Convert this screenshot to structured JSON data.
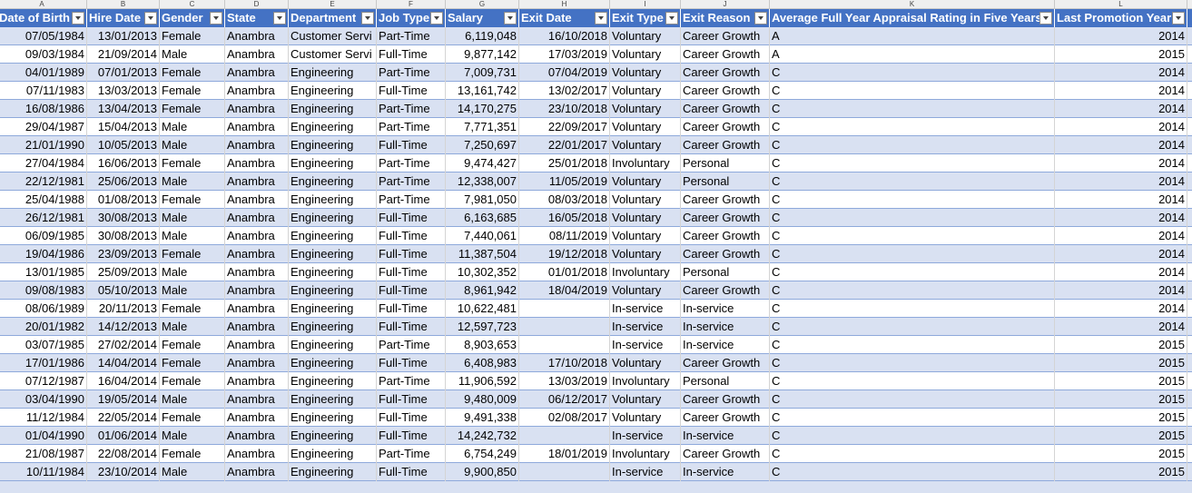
{
  "column_letters": [
    "A",
    "B",
    "C",
    "D",
    "E",
    "F",
    "G",
    "H",
    "I",
    "J",
    "K",
    "L"
  ],
  "headers": [
    "Date of Birth",
    "Hire Date",
    "Gender",
    "State",
    "Department",
    "Job Type",
    "Salary",
    "Exit Date",
    "Exit Type",
    "Exit Reason",
    "Average Full Year Appraisal Rating in Five Years",
    "Last Promotion Year"
  ],
  "rows": [
    [
      "07/05/1984",
      "13/01/2013",
      "Female",
      "Anambra",
      "Customer Servi",
      "Part-Time",
      "6,119,048",
      "16/10/2018",
      "Voluntary",
      "Career Growth",
      "A",
      "2014"
    ],
    [
      "09/03/1984",
      "21/09/2014",
      "Male",
      "Anambra",
      "Customer Servi",
      "Full-Time",
      "9,877,142",
      "17/03/2019",
      "Voluntary",
      "Career Growth",
      "A",
      "2015"
    ],
    [
      "04/01/1989",
      "07/01/2013",
      "Female",
      "Anambra",
      "Engineering",
      "Part-Time",
      "7,009,731",
      "07/04/2019",
      "Voluntary",
      "Career Growth",
      "C",
      "2014"
    ],
    [
      "07/11/1983",
      "13/03/2013",
      "Female",
      "Anambra",
      "Engineering",
      "Full-Time",
      "13,161,742",
      "13/02/2017",
      "Voluntary",
      "Career Growth",
      "C",
      "2014"
    ],
    [
      "16/08/1986",
      "13/04/2013",
      "Female",
      "Anambra",
      "Engineering",
      "Part-Time",
      "14,170,275",
      "23/10/2018",
      "Voluntary",
      "Career Growth",
      "C",
      "2014"
    ],
    [
      "29/04/1987",
      "15/04/2013",
      "Male",
      "Anambra",
      "Engineering",
      "Part-Time",
      "7,771,351",
      "22/09/2017",
      "Voluntary",
      "Career Growth",
      "C",
      "2014"
    ],
    [
      "21/01/1990",
      "10/05/2013",
      "Male",
      "Anambra",
      "Engineering",
      "Full-Time",
      "7,250,697",
      "22/01/2017",
      "Voluntary",
      "Career Growth",
      "C",
      "2014"
    ],
    [
      "27/04/1984",
      "16/06/2013",
      "Female",
      "Anambra",
      "Engineering",
      "Part-Time",
      "9,474,427",
      "25/01/2018",
      "Involuntary",
      "Personal",
      "C",
      "2014"
    ],
    [
      "22/12/1981",
      "25/06/2013",
      "Male",
      "Anambra",
      "Engineering",
      "Part-Time",
      "12,338,007",
      "11/05/2019",
      "Voluntary",
      "Personal",
      "C",
      "2014"
    ],
    [
      "25/04/1988",
      "01/08/2013",
      "Female",
      "Anambra",
      "Engineering",
      "Part-Time",
      "7,981,050",
      "08/03/2018",
      "Voluntary",
      "Career Growth",
      "C",
      "2014"
    ],
    [
      "26/12/1981",
      "30/08/2013",
      "Male",
      "Anambra",
      "Engineering",
      "Full-Time",
      "6,163,685",
      "16/05/2018",
      "Voluntary",
      "Career Growth",
      "C",
      "2014"
    ],
    [
      "06/09/1985",
      "30/08/2013",
      "Male",
      "Anambra",
      "Engineering",
      "Full-Time",
      "7,440,061",
      "08/11/2019",
      "Voluntary",
      "Career Growth",
      "C",
      "2014"
    ],
    [
      "19/04/1986",
      "23/09/2013",
      "Female",
      "Anambra",
      "Engineering",
      "Full-Time",
      "11,387,504",
      "19/12/2018",
      "Voluntary",
      "Career Growth",
      "C",
      "2014"
    ],
    [
      "13/01/1985",
      "25/09/2013",
      "Male",
      "Anambra",
      "Engineering",
      "Full-Time",
      "10,302,352",
      "01/01/2018",
      "Involuntary",
      "Personal",
      "C",
      "2014"
    ],
    [
      "09/08/1983",
      "05/10/2013",
      "Male",
      "Anambra",
      "Engineering",
      "Full-Time",
      "8,961,942",
      "18/04/2019",
      "Voluntary",
      "Career Growth",
      "C",
      "2014"
    ],
    [
      "08/06/1989",
      "20/11/2013",
      "Female",
      "Anambra",
      "Engineering",
      "Full-Time",
      "10,622,481",
      "",
      "In-service",
      "In-service",
      "C",
      "2014"
    ],
    [
      "20/01/1982",
      "14/12/2013",
      "Male",
      "Anambra",
      "Engineering",
      "Full-Time",
      "12,597,723",
      "",
      "In-service",
      "In-service",
      "C",
      "2014"
    ],
    [
      "03/07/1985",
      "27/02/2014",
      "Female",
      "Anambra",
      "Engineering",
      "Part-Time",
      "8,903,653",
      "",
      "In-service",
      "In-service",
      "C",
      "2015"
    ],
    [
      "17/01/1986",
      "14/04/2014",
      "Female",
      "Anambra",
      "Engineering",
      "Full-Time",
      "6,408,983",
      "17/10/2018",
      "Voluntary",
      "Career Growth",
      "C",
      "2015"
    ],
    [
      "07/12/1987",
      "16/04/2014",
      "Female",
      "Anambra",
      "Engineering",
      "Part-Time",
      "11,906,592",
      "13/03/2019",
      "Involuntary",
      "Personal",
      "C",
      "2015"
    ],
    [
      "03/04/1990",
      "19/05/2014",
      "Male",
      "Anambra",
      "Engineering",
      "Full-Time",
      "9,480,009",
      "06/12/2017",
      "Voluntary",
      "Career Growth",
      "C",
      "2015"
    ],
    [
      "11/12/1984",
      "22/05/2014",
      "Female",
      "Anambra",
      "Engineering",
      "Full-Time",
      "9,491,338",
      "02/08/2017",
      "Voluntary",
      "Career Growth",
      "C",
      "2015"
    ],
    [
      "01/04/1990",
      "01/06/2014",
      "Male",
      "Anambra",
      "Engineering",
      "Full-Time",
      "14,242,732",
      "",
      "In-service",
      "In-service",
      "C",
      "2015"
    ],
    [
      "21/08/1987",
      "22/08/2014",
      "Female",
      "Anambra",
      "Engineering",
      "Part-Time",
      "6,754,249",
      "18/01/2019",
      "Involuntary",
      "Career Growth",
      "C",
      "2015"
    ],
    [
      "10/11/1984",
      "23/10/2014",
      "Male",
      "Anambra",
      "Engineering",
      "Full-Time",
      "9,900,850",
      "",
      "In-service",
      "In-service",
      "C",
      "2015"
    ]
  ],
  "colors": {
    "header_bg": "#4472c4",
    "band_bg": "#d9e1f2",
    "border": "#8ea9db"
  },
  "icons": {
    "filter": "dropdown-filter-icon"
  }
}
